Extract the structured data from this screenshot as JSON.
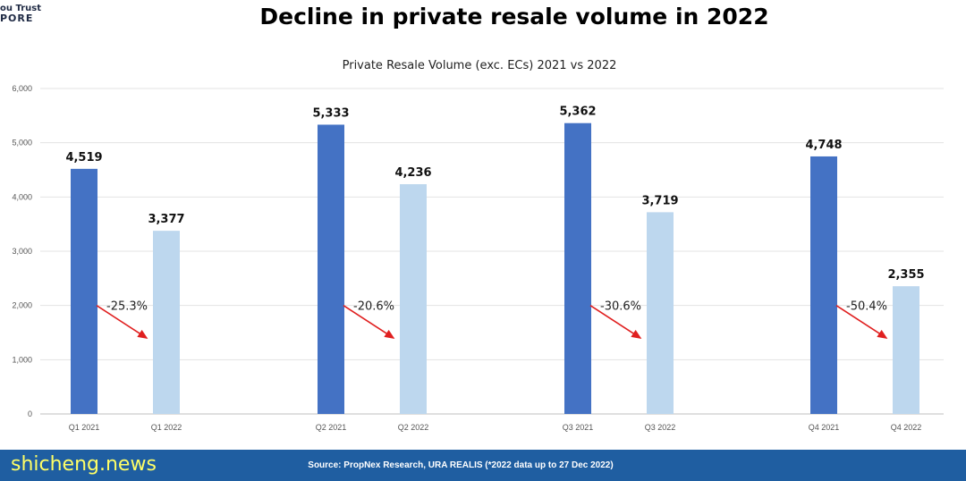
{
  "title": "Decline in private resale volume in 2022",
  "logo_text": {
    "line1": "ou Trust",
    "line2": "PORE"
  },
  "watermark": "shicheng.news",
  "footer": {
    "source": "Source: PropNex Research, URA REALIS (*2022 data up to 27 Dec 2022)"
  },
  "colors": {
    "bar_2021": "#4472c4",
    "bar_2022": "#bdd7ee",
    "arrow": "#e02020",
    "footer": "#1f5ea1",
    "watermark": "#ffff66"
  },
  "chart_data": {
    "type": "bar",
    "title": "Private Resale Volume (exc. ECs) 2021 vs 2022",
    "xlabel": "",
    "ylabel": "",
    "ylim": [
      0,
      6000
    ],
    "yticks": [
      "0",
      "1,000",
      "2,000",
      "3,000",
      "4,000",
      "5,000",
      "6,000"
    ],
    "grid": true,
    "legend": "none",
    "groups": [
      {
        "bars": [
          {
            "label": "Q1 2021",
            "value": 4519,
            "value_label": "4,519"
          },
          {
            "label": "Q1 2022",
            "value": 3377,
            "value_label": "3,377"
          }
        ],
        "change": "-25.3%"
      },
      {
        "bars": [
          {
            "label": "Q2 2021",
            "value": 5333,
            "value_label": "5,333"
          },
          {
            "label": "Q2 2022",
            "value": 4236,
            "value_label": "4,236"
          }
        ],
        "change": "-20.6%"
      },
      {
        "bars": [
          {
            "label": "Q3 2021",
            "value": 5362,
            "value_label": "5,362"
          },
          {
            "label": "Q3 2022",
            "value": 3719,
            "value_label": "3,719"
          }
        ],
        "change": "-30.6%"
      },
      {
        "bars": [
          {
            "label": "Q4 2021",
            "value": 4748,
            "value_label": "4,748"
          },
          {
            "label": "Q4 2022",
            "value": 2355,
            "value_label": "2,355"
          }
        ],
        "change": "-50.4%"
      }
    ]
  }
}
